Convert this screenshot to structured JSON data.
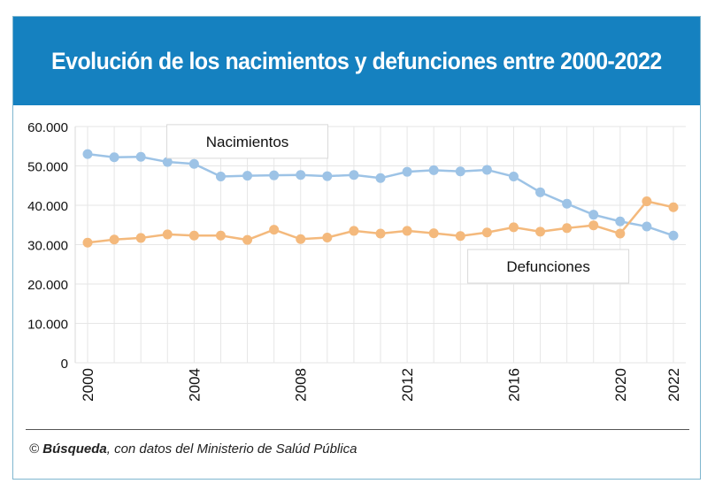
{
  "title": "Evolución de los nacimientos y defunciones entre 2000-2022",
  "source": {
    "prefix": "© ",
    "brand": "Búsqueda",
    "rest": ", con datos del Ministerio de Salúd Pública"
  },
  "colors": {
    "header": "#1581c0",
    "nacimientos": "#9dc3e6",
    "defunciones": "#f4b97c",
    "grid": "#e6e6e6"
  },
  "chart_data": {
    "type": "line",
    "title": "Evolución de los nacimientos y defunciones entre 2000-2022",
    "xlabel": "",
    "ylabel": "",
    "x": [
      2000,
      2001,
      2002,
      2003,
      2004,
      2005,
      2006,
      2007,
      2008,
      2009,
      2010,
      2011,
      2012,
      2013,
      2014,
      2015,
      2016,
      2017,
      2018,
      2019,
      2020,
      2021,
      2022
    ],
    "xticks": [
      "2000",
      "2004",
      "2008",
      "2012",
      "2016",
      "2020",
      "2022"
    ],
    "ylim": [
      0,
      60000
    ],
    "yticks": [
      "0",
      "10.000",
      "20.000",
      "30.000",
      "40.000",
      "50.000",
      "60.000"
    ],
    "grid": true,
    "series": [
      {
        "name": "Nacimientos",
        "values": [
          53000,
          52200,
          52300,
          51000,
          50500,
          47300,
          47500,
          47600,
          47700,
          47400,
          47700,
          46900,
          48500,
          48900,
          48600,
          49000,
          47300,
          43300,
          40400,
          37600,
          35900,
          34600,
          32300
        ]
      },
      {
        "name": "Defunciones",
        "values": [
          30500,
          31300,
          31700,
          32600,
          32300,
          32300,
          31200,
          33800,
          31400,
          31800,
          33500,
          32800,
          33500,
          32900,
          32200,
          33100,
          34400,
          33300,
          34200,
          34900,
          32800,
          41000,
          39500
        ]
      }
    ]
  }
}
